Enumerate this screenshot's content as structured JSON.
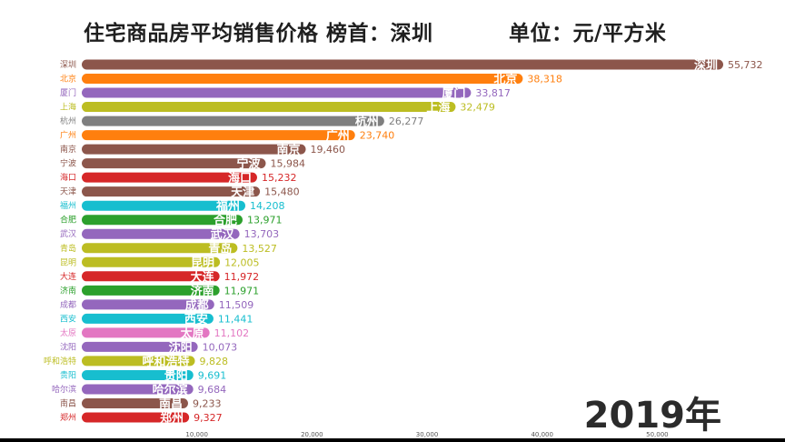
{
  "title_main": "住宅商品房平均销售价格 榜首：深圳",
  "title_unit": "单位：元/平方米",
  "year_label": "2019年",
  "chart_data": {
    "type": "bar",
    "orientation": "horizontal",
    "title": "住宅商品房平均销售价格 榜首：深圳",
    "unit": "单位：元/平方米",
    "xlim": [
      0,
      55732
    ],
    "x_ticks": [
      "10,000",
      "20,000",
      "30,000",
      "40,000",
      "50,000"
    ],
    "grid": false,
    "categories": [
      "深圳",
      "北京",
      "厦门",
      "上海",
      "杭州",
      "广州",
      "南京",
      "宁波",
      "海口",
      "天津",
      "福州",
      "合肥",
      "武汉",
      "青岛",
      "昆明",
      "大连",
      "济南",
      "成都",
      "西安",
      "太原",
      "沈阳",
      "呼和浩特",
      "贵阳",
      "哈尔滨",
      "南昌",
      "郑州"
    ],
    "values": [
      55732,
      38318,
      33817,
      32479,
      26277,
      23740,
      19460,
      15984,
      15232,
      15480,
      14208,
      13971,
      13703,
      13527,
      12005,
      11972,
      11971,
      11509,
      11441,
      11102,
      10073,
      9828,
      9691,
      9684,
      9233,
      9327
    ],
    "value_labels": [
      "55,732",
      "38,318",
      "33,817",
      "32,479",
      "26,277",
      "23,740",
      "19,460",
      "15,984",
      "15,232",
      "15,480",
      "14,208",
      "13,971",
      "13,703",
      "13,527",
      "12,005",
      "11,972",
      "11,971",
      "11,509",
      "11,441",
      "11,102",
      "10,073",
      "9,828",
      "9,691",
      "9,684",
      "9,233",
      "9,327"
    ],
    "colors": [
      "#8c564b",
      "#ff7f0e",
      "#9467bd",
      "#bcbd22",
      "#7f7f7f",
      "#ff7f0e",
      "#8c564b",
      "#8c564b",
      "#d62728",
      "#8c564b",
      "#17becf",
      "#2ca02c",
      "#9467bd",
      "#bcbd22",
      "#bcbd22",
      "#d62728",
      "#2ca02c",
      "#9467bd",
      "#17becf",
      "#e377c2",
      "#9467bd",
      "#bcbd22",
      "#17becf",
      "#9467bd",
      "#8c564b",
      "#d62728"
    ]
  }
}
